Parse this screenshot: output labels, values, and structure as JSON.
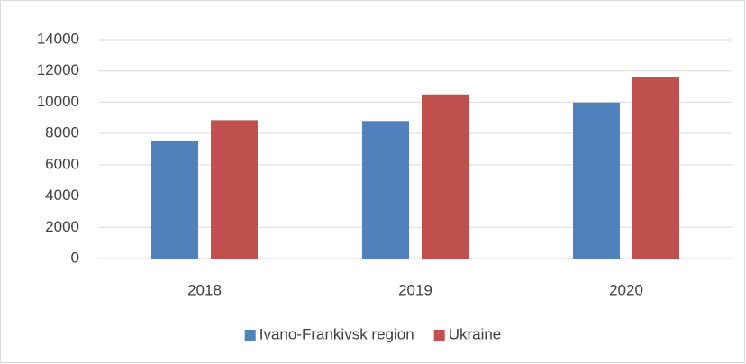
{
  "chart_data": {
    "type": "bar",
    "categories": [
      "2018",
      "2019",
      "2020"
    ],
    "series": [
      {
        "name": "Ivano-Frankivsk region",
        "color": "#4f81bd",
        "values": [
          7550,
          8800,
          9980
        ]
      },
      {
        "name": "Ukraine",
        "color": "#c0504d",
        "values": [
          8850,
          10500,
          11600
        ]
      }
    ],
    "ylim": [
      0,
      14000
    ],
    "yticks": [
      0,
      2000,
      4000,
      6000,
      8000,
      10000,
      12000,
      14000
    ],
    "grid": true,
    "legend": "bottom"
  }
}
